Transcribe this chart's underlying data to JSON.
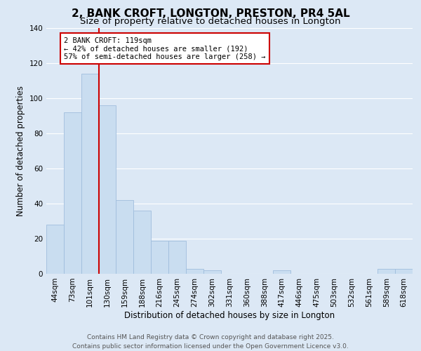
{
  "title": "2, BANK CROFT, LONGTON, PRESTON, PR4 5AL",
  "subtitle": "Size of property relative to detached houses in Longton",
  "xlabel": "Distribution of detached houses by size in Longton",
  "ylabel": "Number of detached properties",
  "categories": [
    "44sqm",
    "73sqm",
    "101sqm",
    "130sqm",
    "159sqm",
    "188sqm",
    "216sqm",
    "245sqm",
    "274sqm",
    "302sqm",
    "331sqm",
    "360sqm",
    "388sqm",
    "417sqm",
    "446sqm",
    "475sqm",
    "503sqm",
    "532sqm",
    "561sqm",
    "589sqm",
    "618sqm"
  ],
  "values": [
    28,
    92,
    114,
    96,
    42,
    36,
    19,
    19,
    3,
    2,
    0,
    0,
    0,
    2,
    0,
    0,
    0,
    0,
    0,
    3,
    3
  ],
  "bar_color": "#c9ddf0",
  "bar_edge_color": "#a0bedd",
  "background_color": "#dce8f5",
  "grid_color": "#ffffff",
  "annotation_text_line1": "2 BANK CROFT: 119sqm",
  "annotation_text_line2": "← 42% of detached houses are smaller (192)",
  "annotation_text_line3": "57% of semi-detached houses are larger (258) →",
  "annotation_box_color": "#ffffff",
  "annotation_box_edge": "#cc0000",
  "red_line_color": "#cc0000",
  "ylim": [
    0,
    140
  ],
  "yticks": [
    0,
    20,
    40,
    60,
    80,
    100,
    120,
    140
  ],
  "footer_line1": "Contains HM Land Registry data © Crown copyright and database right 2025.",
  "footer_line2": "Contains public sector information licensed under the Open Government Licence v3.0.",
  "title_fontsize": 11,
  "subtitle_fontsize": 9.5,
  "axis_label_fontsize": 8.5,
  "tick_fontsize": 7.5,
  "annotation_fontsize": 7.5,
  "footer_fontsize": 6.5
}
